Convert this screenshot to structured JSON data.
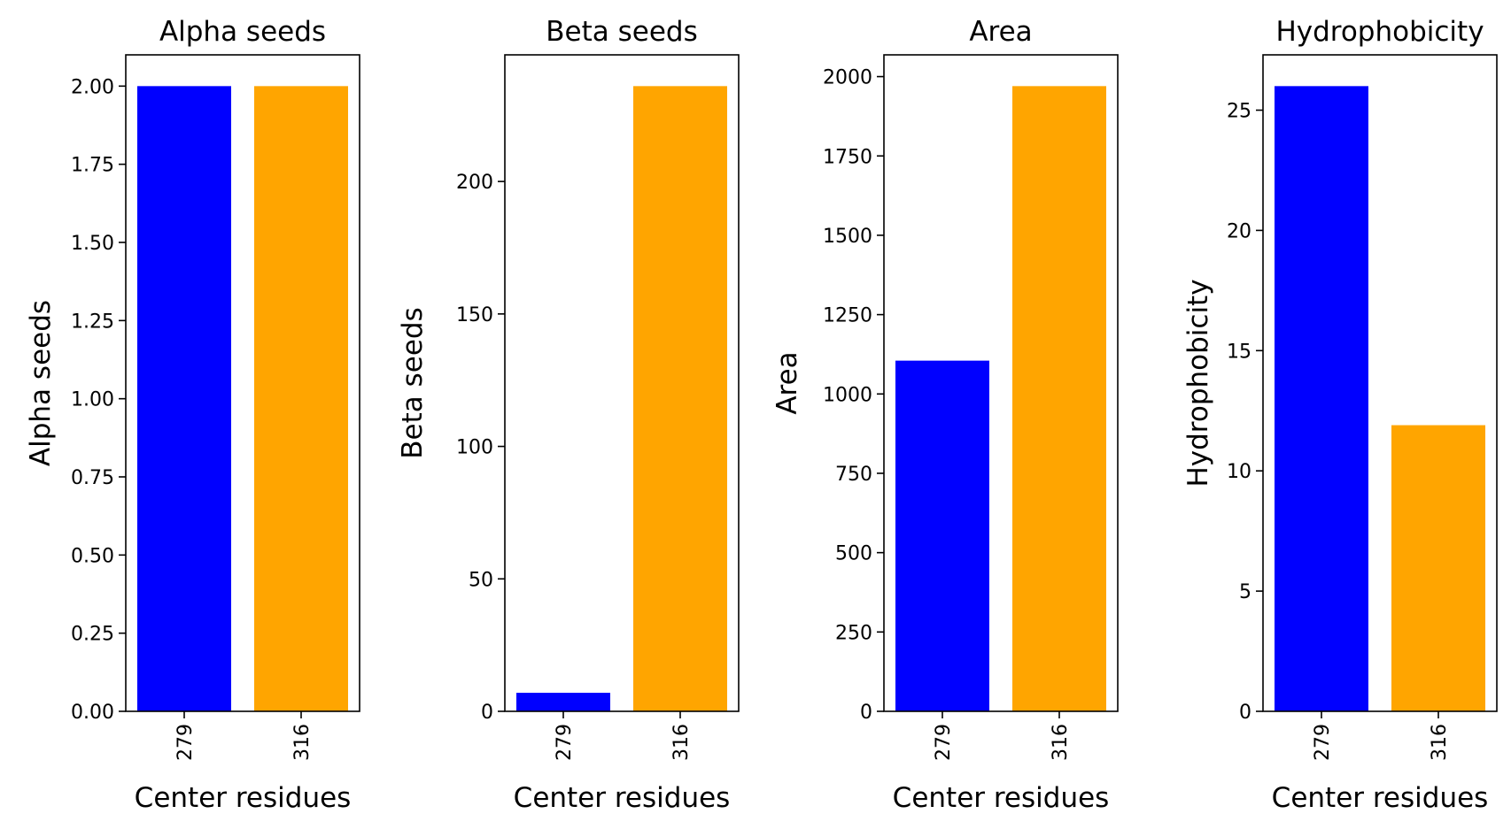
{
  "chart_data": [
    {
      "type": "bar",
      "title": "Alpha seeds",
      "xlabel": "Center residues",
      "ylabel": "Alpha seeds",
      "categories": [
        "279",
        "316"
      ],
      "values": [
        2.0,
        2.0
      ],
      "colors": [
        "#0000ff",
        "#ffa500"
      ],
      "ylim": [
        0,
        2.1
      ],
      "yticks": [
        0,
        0.25,
        0.5,
        0.75,
        1.0,
        1.25,
        1.5,
        1.75,
        2.0
      ],
      "ytick_labels": [
        "0.00",
        "0.25",
        "0.50",
        "0.75",
        "1.00",
        "1.25",
        "1.50",
        "1.75",
        "2.00"
      ]
    },
    {
      "type": "bar",
      "title": "Beta seeds",
      "xlabel": "Center residues",
      "ylabel": "Beta seeds",
      "categories": [
        "279",
        "316"
      ],
      "values": [
        7,
        236
      ],
      "colors": [
        "#0000ff",
        "#ffa500"
      ],
      "ylim": [
        0,
        247.8
      ],
      "yticks": [
        0,
        50,
        100,
        150,
        200
      ],
      "ytick_labels": [
        "0",
        "50",
        "100",
        "150",
        "200"
      ]
    },
    {
      "type": "bar",
      "title": "Area",
      "xlabel": "Center residues",
      "ylabel": "Area",
      "categories": [
        "279",
        "316"
      ],
      "values": [
        1105,
        1970
      ],
      "colors": [
        "#0000ff",
        "#ffa500"
      ],
      "ylim": [
        0,
        2068.5
      ],
      "yticks": [
        0,
        250,
        500,
        750,
        1000,
        1250,
        1500,
        1750,
        2000
      ],
      "ytick_labels": [
        "0",
        "250",
        "500",
        "750",
        "1000",
        "1250",
        "1500",
        "1750",
        "2000"
      ]
    },
    {
      "type": "bar",
      "title": "Hydrophobicity",
      "xlabel": "Center residues",
      "ylabel": "Hydrophobicity",
      "categories": [
        "279",
        "316"
      ],
      "values": [
        26,
        11.9
      ],
      "colors": [
        "#0000ff",
        "#ffa500"
      ],
      "ylim": [
        0,
        27.3
      ],
      "yticks": [
        0,
        5,
        10,
        15,
        20,
        25
      ],
      "ytick_labels": [
        "0",
        "5",
        "10",
        "15",
        "20",
        "25"
      ]
    }
  ]
}
